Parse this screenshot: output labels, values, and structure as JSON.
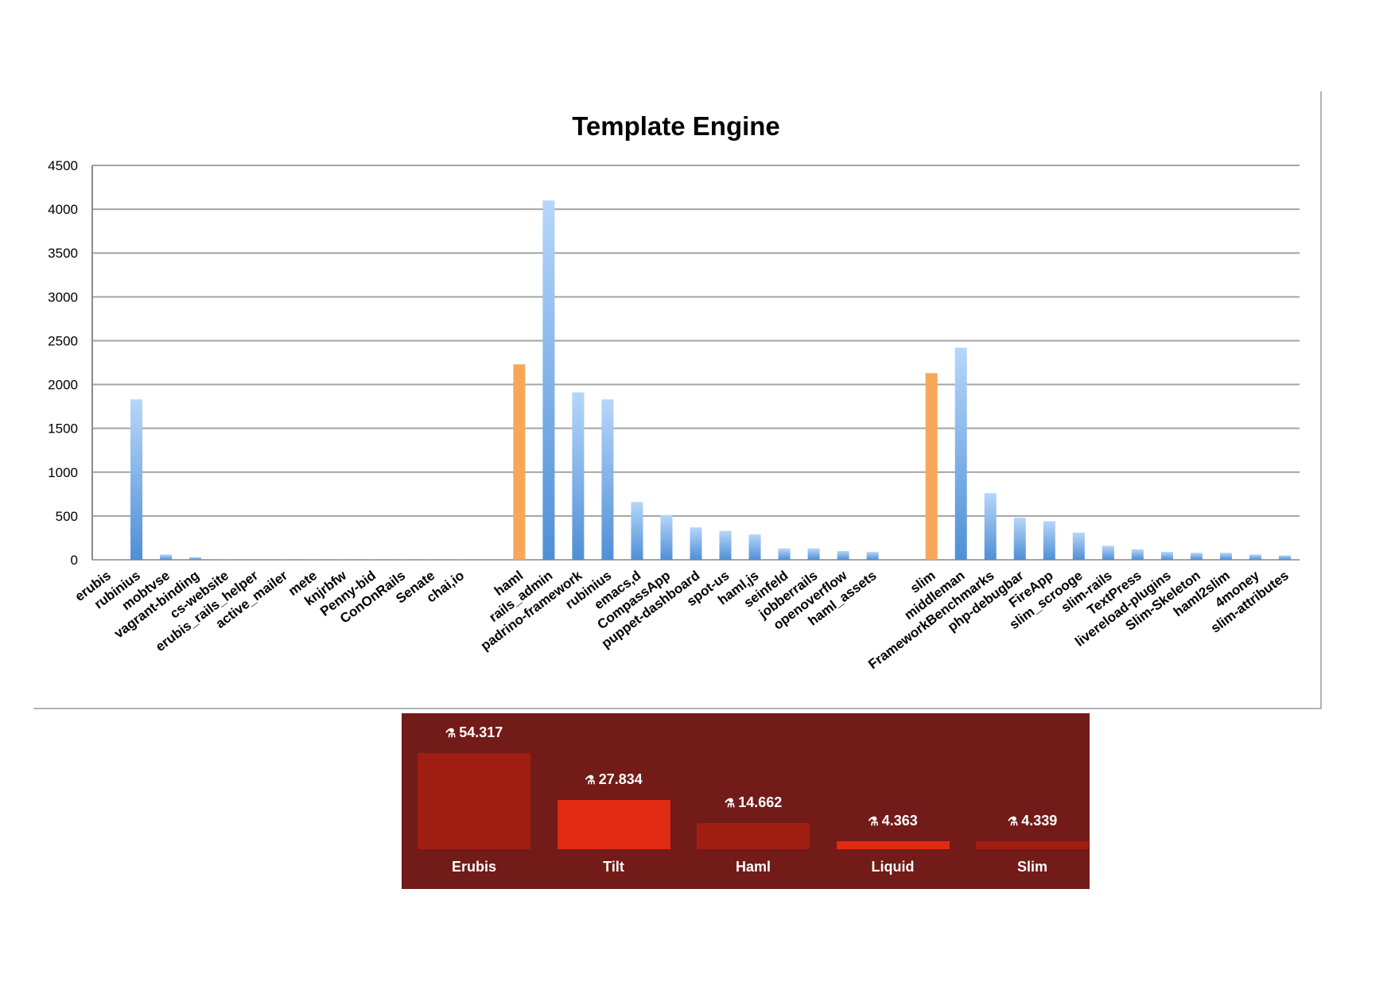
{
  "chart_data": [
    {
      "type": "bar",
      "title": "Template Engine",
      "xlabel": "",
      "ylabel": "",
      "ylim": [
        0,
        4500
      ],
      "yticks": [
        0,
        500,
        1000,
        1500,
        2000,
        2500,
        3000,
        3500,
        4000,
        4500
      ],
      "grid": true,
      "legend": "none",
      "colors": {
        "bar": "#5b9bd5",
        "bar_light": "#a9cdf5",
        "highlight": "#f7a65a"
      },
      "categories": [
        "erubis",
        "rubinius",
        "mobtvse",
        "vagrant-binding",
        "cs-website",
        "erubis_rails_helper",
        "active_mailer",
        "mete",
        "knjrbfw",
        "Penny-bid",
        "ConOnRails",
        "Senate",
        "chai,io",
        "",
        "haml",
        "rails_admin",
        "padrino-framework",
        "rubinius",
        "emacs,d",
        "CompassApp",
        "puppet-dashboard",
        "spot-us",
        "haml,js",
        "seinfeld",
        "jobberrails",
        "openoverflow",
        "haml_assets",
        "",
        "slim",
        "middleman",
        "FrameworkBenchmarks",
        "php-debugbar",
        "FireApp",
        "slim_scrooge",
        "slim-rails",
        "TextPress",
        "livereload-plugins",
        "Slim-Skeleton",
        "haml2slim",
        "4money",
        "slim-attributes"
      ],
      "values": [
        0,
        1830,
        60,
        30,
        8,
        5,
        3,
        2,
        2,
        2,
        2,
        1,
        1,
        null,
        2230,
        4100,
        1910,
        1830,
        660,
        510,
        370,
        330,
        290,
        130,
        130,
        100,
        90,
        null,
        2130,
        2420,
        760,
        480,
        440,
        310,
        160,
        120,
        90,
        80,
        80,
        60,
        50
      ],
      "highlighted": [
        "haml",
        "slim"
      ]
    },
    {
      "type": "bar",
      "categories": [
        "Erubis",
        "Tilt",
        "Haml",
        "Liquid",
        "Slim"
      ],
      "values": [
        54.317,
        27.834,
        14.662,
        4.363,
        4.339
      ],
      "value_labels": [
        "54.317",
        "27.834",
        "14.662",
        "4.363",
        "4.339"
      ],
      "colors": {
        "background": "#721b18",
        "bars": [
          "#a01d12",
          "#e02a12",
          "#a01d12",
          "#e02a12",
          "#a01d12"
        ],
        "text": "#ffffff"
      }
    }
  ]
}
